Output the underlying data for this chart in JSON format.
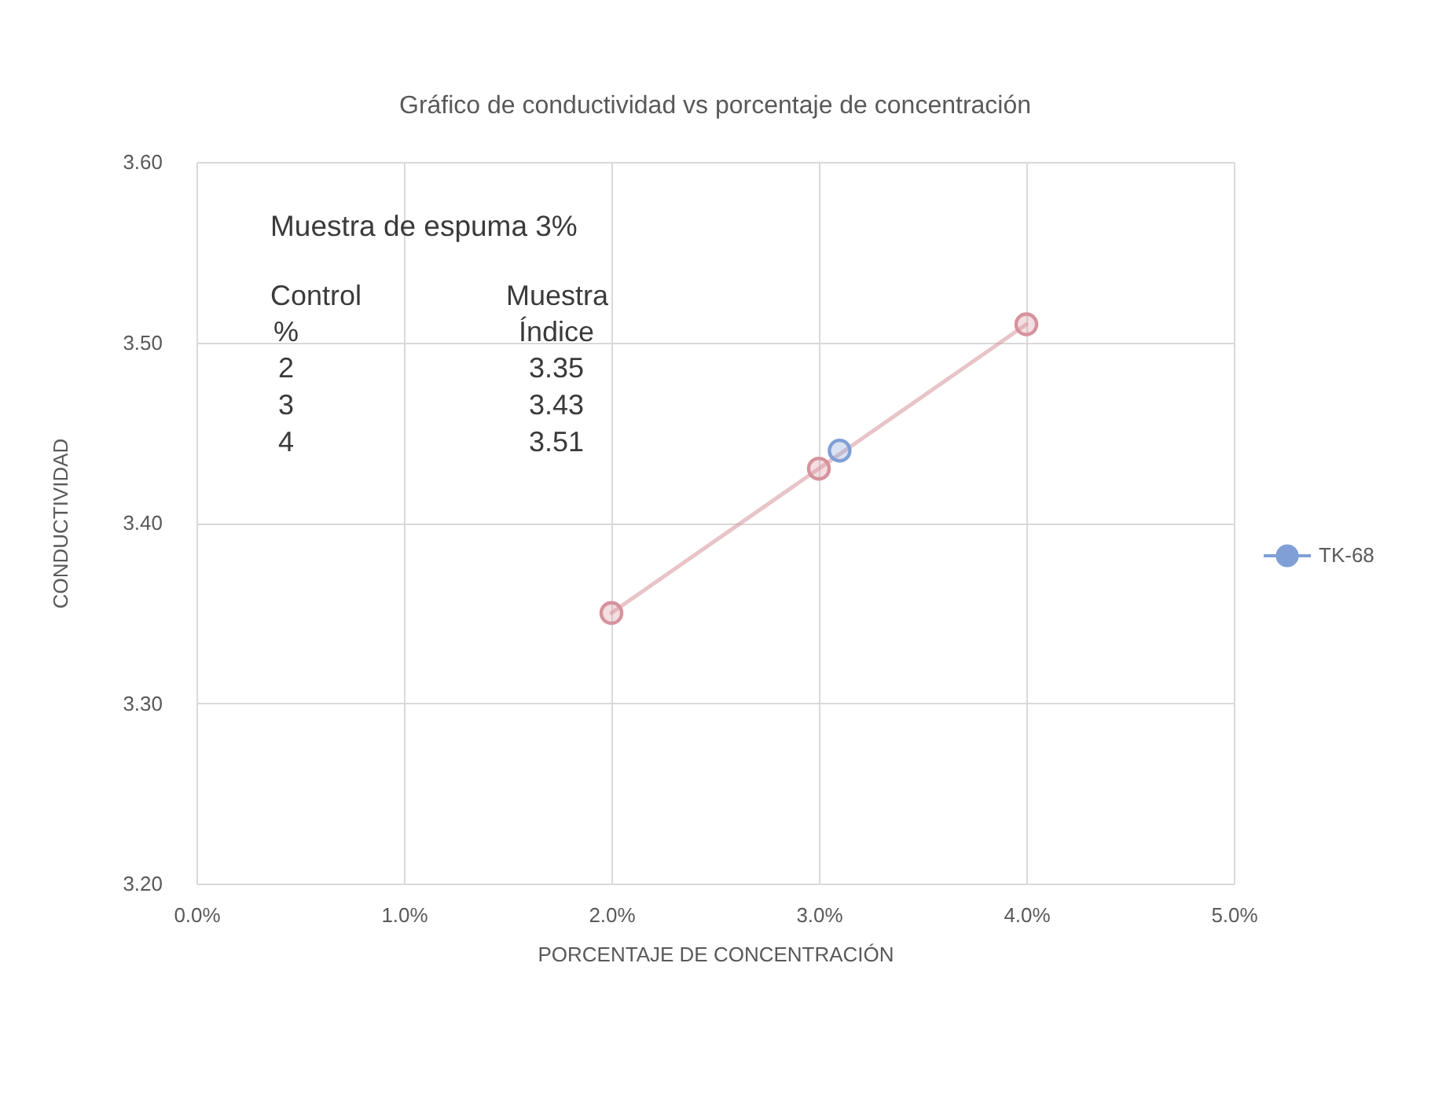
{
  "chart_data": {
    "type": "line",
    "title": "Gráfico de conductividad vs porcentaje de concentración",
    "xlabel": "PORCENTAJE DE CONCENTRACIÓN",
    "ylabel": "CONDUCTIVIDAD",
    "annotations": [
      "Muestra de espuma 3%",
      "Control",
      "Muestra",
      "%",
      "Índice",
      "2",
      "3.35",
      "3",
      "3.43",
      "4",
      "3.51"
    ],
    "x": [
      2,
      3,
      4
    ],
    "series": [
      {
        "color": "#d6939d",
        "values": [
          3.35,
          3.43,
          3.51
        ]
      },
      {
        "name": "TK-68",
        "color": "#7f9fd6",
        "x": [
          3.1
        ],
        "values": [
          3.44
        ]
      }
    ],
    "xlim": [
      0,
      5
    ],
    "xticks": [
      {
        "value": 0,
        "label": "0.0%"
      },
      {
        "value": 1,
        "label": "1.0%"
      },
      {
        "value": 2,
        "label": "2.0%"
      },
      {
        "value": 3,
        "label": "3.0%"
      },
      {
        "value": 4,
        "label": "4.0%"
      },
      {
        "value": 5,
        "label": "5.0%"
      }
    ],
    "ylim": [
      3.2,
      3.6
    ],
    "yticks": [
      {
        "value": 3.2,
        "label": "3.20"
      },
      {
        "value": 3.3,
        "label": "3.30"
      },
      {
        "value": 3.4,
        "label": "3.40"
      },
      {
        "value": 3.5,
        "label": "3.50"
      },
      {
        "value": 3.6,
        "label": "3.60"
      }
    ],
    "grid": true,
    "legend": "right",
    "marker": "circle"
  }
}
